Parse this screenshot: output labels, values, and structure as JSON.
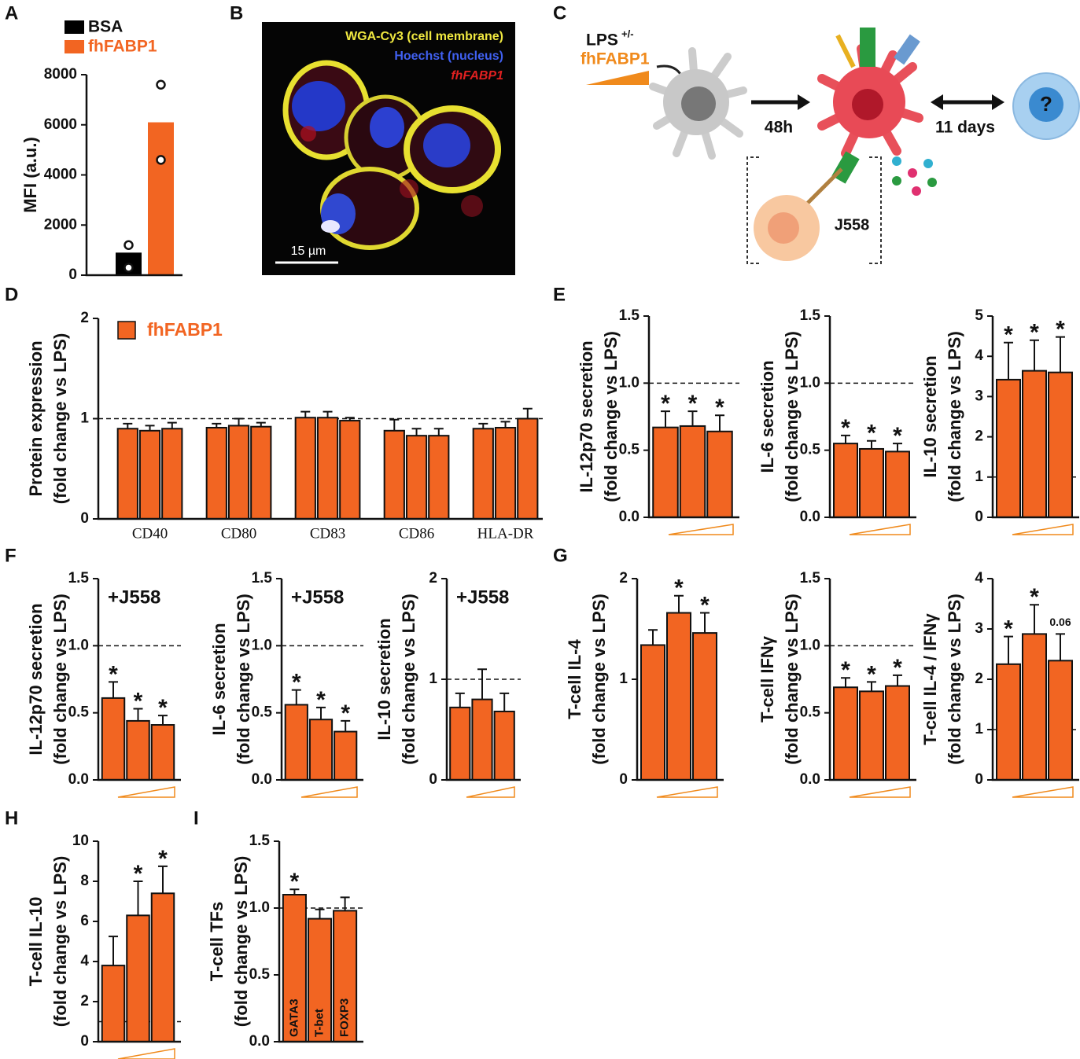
{
  "panel_labels": [
    "A",
    "B",
    "C",
    "D",
    "E",
    "F",
    "G",
    "H",
    "I"
  ],
  "image": {
    "labels": [
      "WGA-Cy3 (cell membrane)",
      "Hoechst (nucleus)",
      "fhFABP1"
    ],
    "scale_bar": "15 µm"
  },
  "diagram": {
    "treatment": "LPS",
    "treatment_sign": "+/-",
    "agent": "fhFABP1",
    "time1": "48h",
    "time2": "11 days",
    "unknown": "?",
    "cell": "J558"
  },
  "chart_data": [
    {
      "type": "bar",
      "ylabel": [
        "MFI (a.u.)"
      ],
      "ylim": [
        0,
        8000
      ],
      "yticks": [
        0,
        2000,
        4000,
        6000,
        8000
      ],
      "series": [
        {
          "name": "BSA",
          "color": "#000000",
          "values": [
            900
          ],
          "points": [
            1200,
            300
          ]
        },
        {
          "name": "fhFABP1",
          "color": "#f26522",
          "values": [
            6100
          ],
          "points": [
            7600,
            4600
          ]
        }
      ]
    },
    {
      "type": "bar",
      "ylabel": [
        "Protein expression",
        "(fold change vs LPS)"
      ],
      "series_name": "fhFABP1",
      "color": "#f26522",
      "ylim": [
        0,
        2
      ],
      "yticks": [
        0,
        1,
        2
      ],
      "reference_line": 1,
      "categories": [
        "CD40",
        "CD80",
        "CD83",
        "CD86",
        "HLA-DR"
      ],
      "values": [
        [
          0.9,
          0.88,
          0.9
        ],
        [
          0.91,
          0.93,
          0.92
        ],
        [
          1.01,
          1.01,
          0.98
        ],
        [
          0.88,
          0.83,
          0.83
        ],
        [
          0.9,
          0.91,
          1.0
        ]
      ],
      "errors": [
        [
          0.05,
          0.05,
          0.06
        ],
        [
          0.04,
          0.07,
          0.04
        ],
        [
          0.06,
          0.06,
          0.03
        ],
        [
          0.11,
          0.07,
          0.07
        ],
        [
          0.05,
          0.06,
          0.1
        ]
      ]
    },
    {
      "type": "bar",
      "ylabel": [
        "IL-12p70 secretion",
        "(fold change vs LPS)"
      ],
      "color": "#f26522",
      "ylim": [
        0,
        1.5
      ],
      "yticks": [
        {
          "value": 0,
          "label": "0.0"
        },
        0.5,
        {
          "value": 1,
          "label": "1.0"
        },
        1.5
      ],
      "reference_line": 1,
      "values": [
        [
          0.67,
          0.68,
          0.64
        ]
      ],
      "errors": [
        [
          0.12,
          0.11,
          0.12
        ]
      ],
      "annotations": [
        [
          "*",
          "*",
          "*"
        ]
      ]
    },
    {
      "type": "bar",
      "ylabel": [
        "IL-6 secretion",
        "(fold change vs LPS)"
      ],
      "color": "#f26522",
      "ylim": [
        0,
        1.5
      ],
      "yticks": [
        {
          "value": 0,
          "label": "0.0"
        },
        0.5,
        {
          "value": 1,
          "label": "1.0"
        },
        1.5
      ],
      "reference_line": 1,
      "values": [
        [
          0.55,
          0.51,
          0.49
        ]
      ],
      "errors": [
        [
          0.06,
          0.06,
          0.06
        ]
      ],
      "annotations": [
        [
          "*",
          "*",
          "*"
        ]
      ]
    },
    {
      "type": "bar",
      "ylabel": [
        "IL-10 secretion",
        "(fold change vs LPS)"
      ],
      "color": "#f26522",
      "ylim": [
        0,
        5
      ],
      "yticks": [
        0,
        1,
        2,
        3,
        4,
        5
      ],
      "reference_line": 1,
      "values": [
        [
          3.42,
          3.64,
          3.6
        ]
      ],
      "errors": [
        [
          0.92,
          0.76,
          0.88
        ]
      ],
      "annotations": [
        [
          "*",
          "*",
          "*"
        ]
      ]
    },
    {
      "type": "bar",
      "ylabel": [
        "IL-12p70 secretion",
        "(fold change vs LPS)"
      ],
      "label": "+J558",
      "color": "#f26522",
      "ylim": [
        0,
        1.5
      ],
      "yticks": [
        {
          "value": 0,
          "label": "0.0"
        },
        0.5,
        {
          "value": 1,
          "label": "1.0"
        },
        1.5
      ],
      "reference_line": 1,
      "values": [
        [
          0.61,
          0.44,
          0.41
        ]
      ],
      "errors": [
        [
          0.12,
          0.09,
          0.07
        ]
      ],
      "annotations": [
        [
          "*",
          "*",
          "*"
        ]
      ]
    },
    {
      "type": "bar",
      "ylabel": [
        "IL-6 secretion",
        "(fold change vs LPS)"
      ],
      "label": "+J558",
      "color": "#f26522",
      "ylim": [
        0,
        1.5
      ],
      "yticks": [
        {
          "value": 0,
          "label": "0.0"
        },
        0.5,
        {
          "value": 1,
          "label": "1.0"
        },
        1.5
      ],
      "reference_line": 1,
      "values": [
        [
          0.56,
          0.45,
          0.36
        ]
      ],
      "errors": [
        [
          0.11,
          0.09,
          0.08
        ]
      ],
      "annotations": [
        [
          "*",
          "*",
          "*"
        ]
      ]
    },
    {
      "type": "bar",
      "ylabel": [
        "IL-10 secretion",
        "(fold change vs LPS)"
      ],
      "label": "+J558",
      "color": "#f26522",
      "ylim": [
        0,
        2
      ],
      "yticks": [
        0,
        1,
        2
      ],
      "reference_line": 1,
      "values": [
        [
          0.72,
          0.8,
          0.68
        ]
      ],
      "errors": [
        [
          0.14,
          0.3,
          0.18
        ]
      ]
    },
    {
      "type": "bar",
      "ylabel": [
        "T-cell IL-4",
        "(fold change vs LPS)"
      ],
      "color": "#f26522",
      "ylim": [
        0,
        2
      ],
      "yticks": [
        0,
        1,
        2
      ],
      "values": [
        [
          1.34,
          1.66,
          1.46
        ]
      ],
      "errors": [
        [
          0.15,
          0.17,
          0.2
        ]
      ],
      "annotations": [
        [
          null,
          "*",
          "*"
        ]
      ]
    },
    {
      "type": "bar",
      "ylabel": [
        "T-cell IFNγ",
        "(fold change vs LPS)"
      ],
      "color": "#f26522",
      "ylim": [
        0,
        1.5
      ],
      "yticks": [
        {
          "value": 0,
          "label": "0.0"
        },
        0.5,
        {
          "value": 1,
          "label": "1.0"
        },
        1.5
      ],
      "reference_line": 1,
      "values": [
        [
          0.69,
          0.66,
          0.7
        ]
      ],
      "errors": [
        [
          0.07,
          0.07,
          0.08
        ]
      ],
      "annotations": [
        [
          "*",
          "*",
          "*"
        ]
      ]
    },
    {
      "type": "bar",
      "ylabel": [
        "T-cell IL-4 / IFNγ",
        "(fold change vs LPS)"
      ],
      "color": "#f26522",
      "ylim": [
        0,
        4
      ],
      "yticks": [
        0,
        1,
        2,
        3,
        4
      ],
      "reference_line": 1,
      "values": [
        [
          2.3,
          2.9,
          2.37
        ]
      ],
      "errors": [
        [
          0.55,
          0.58,
          0.53
        ]
      ],
      "annotations": [
        [
          "*",
          "*",
          "0.06"
        ]
      ]
    },
    {
      "type": "bar",
      "ylabel": [
        "T-cell IL-10",
        "(fold change vs LPS)"
      ],
      "color": "#f26522",
      "ylim": [
        0,
        10
      ],
      "yticks": [
        0,
        2,
        4,
        6,
        8,
        10
      ],
      "reference_line": 1,
      "values": [
        [
          3.8,
          6.3,
          7.4
        ]
      ],
      "errors": [
        [
          1.45,
          1.7,
          1.35
        ]
      ],
      "annotations": [
        [
          null,
          "*",
          "*"
        ]
      ]
    },
    {
      "type": "bar",
      "ylabel": [
        "T-cell TFs",
        "(fold change vs LPS)"
      ],
      "color": "#f26522",
      "ylim": [
        0,
        1.5
      ],
      "yticks": [
        {
          "value": 0,
          "label": "0.0"
        },
        0.5,
        {
          "value": 1,
          "label": "1.0"
        },
        1.5
      ],
      "reference_line": 1,
      "values": [
        [
          1.1,
          0.92,
          0.98
        ]
      ],
      "errors": [
        [
          0.04,
          0.07,
          0.1
        ]
      ],
      "annotations": [
        [
          "*",
          null,
          null
        ]
      ],
      "bar_labels": [
        [
          "GATA3",
          "T-bet",
          "FOXP3"
        ]
      ]
    }
  ]
}
